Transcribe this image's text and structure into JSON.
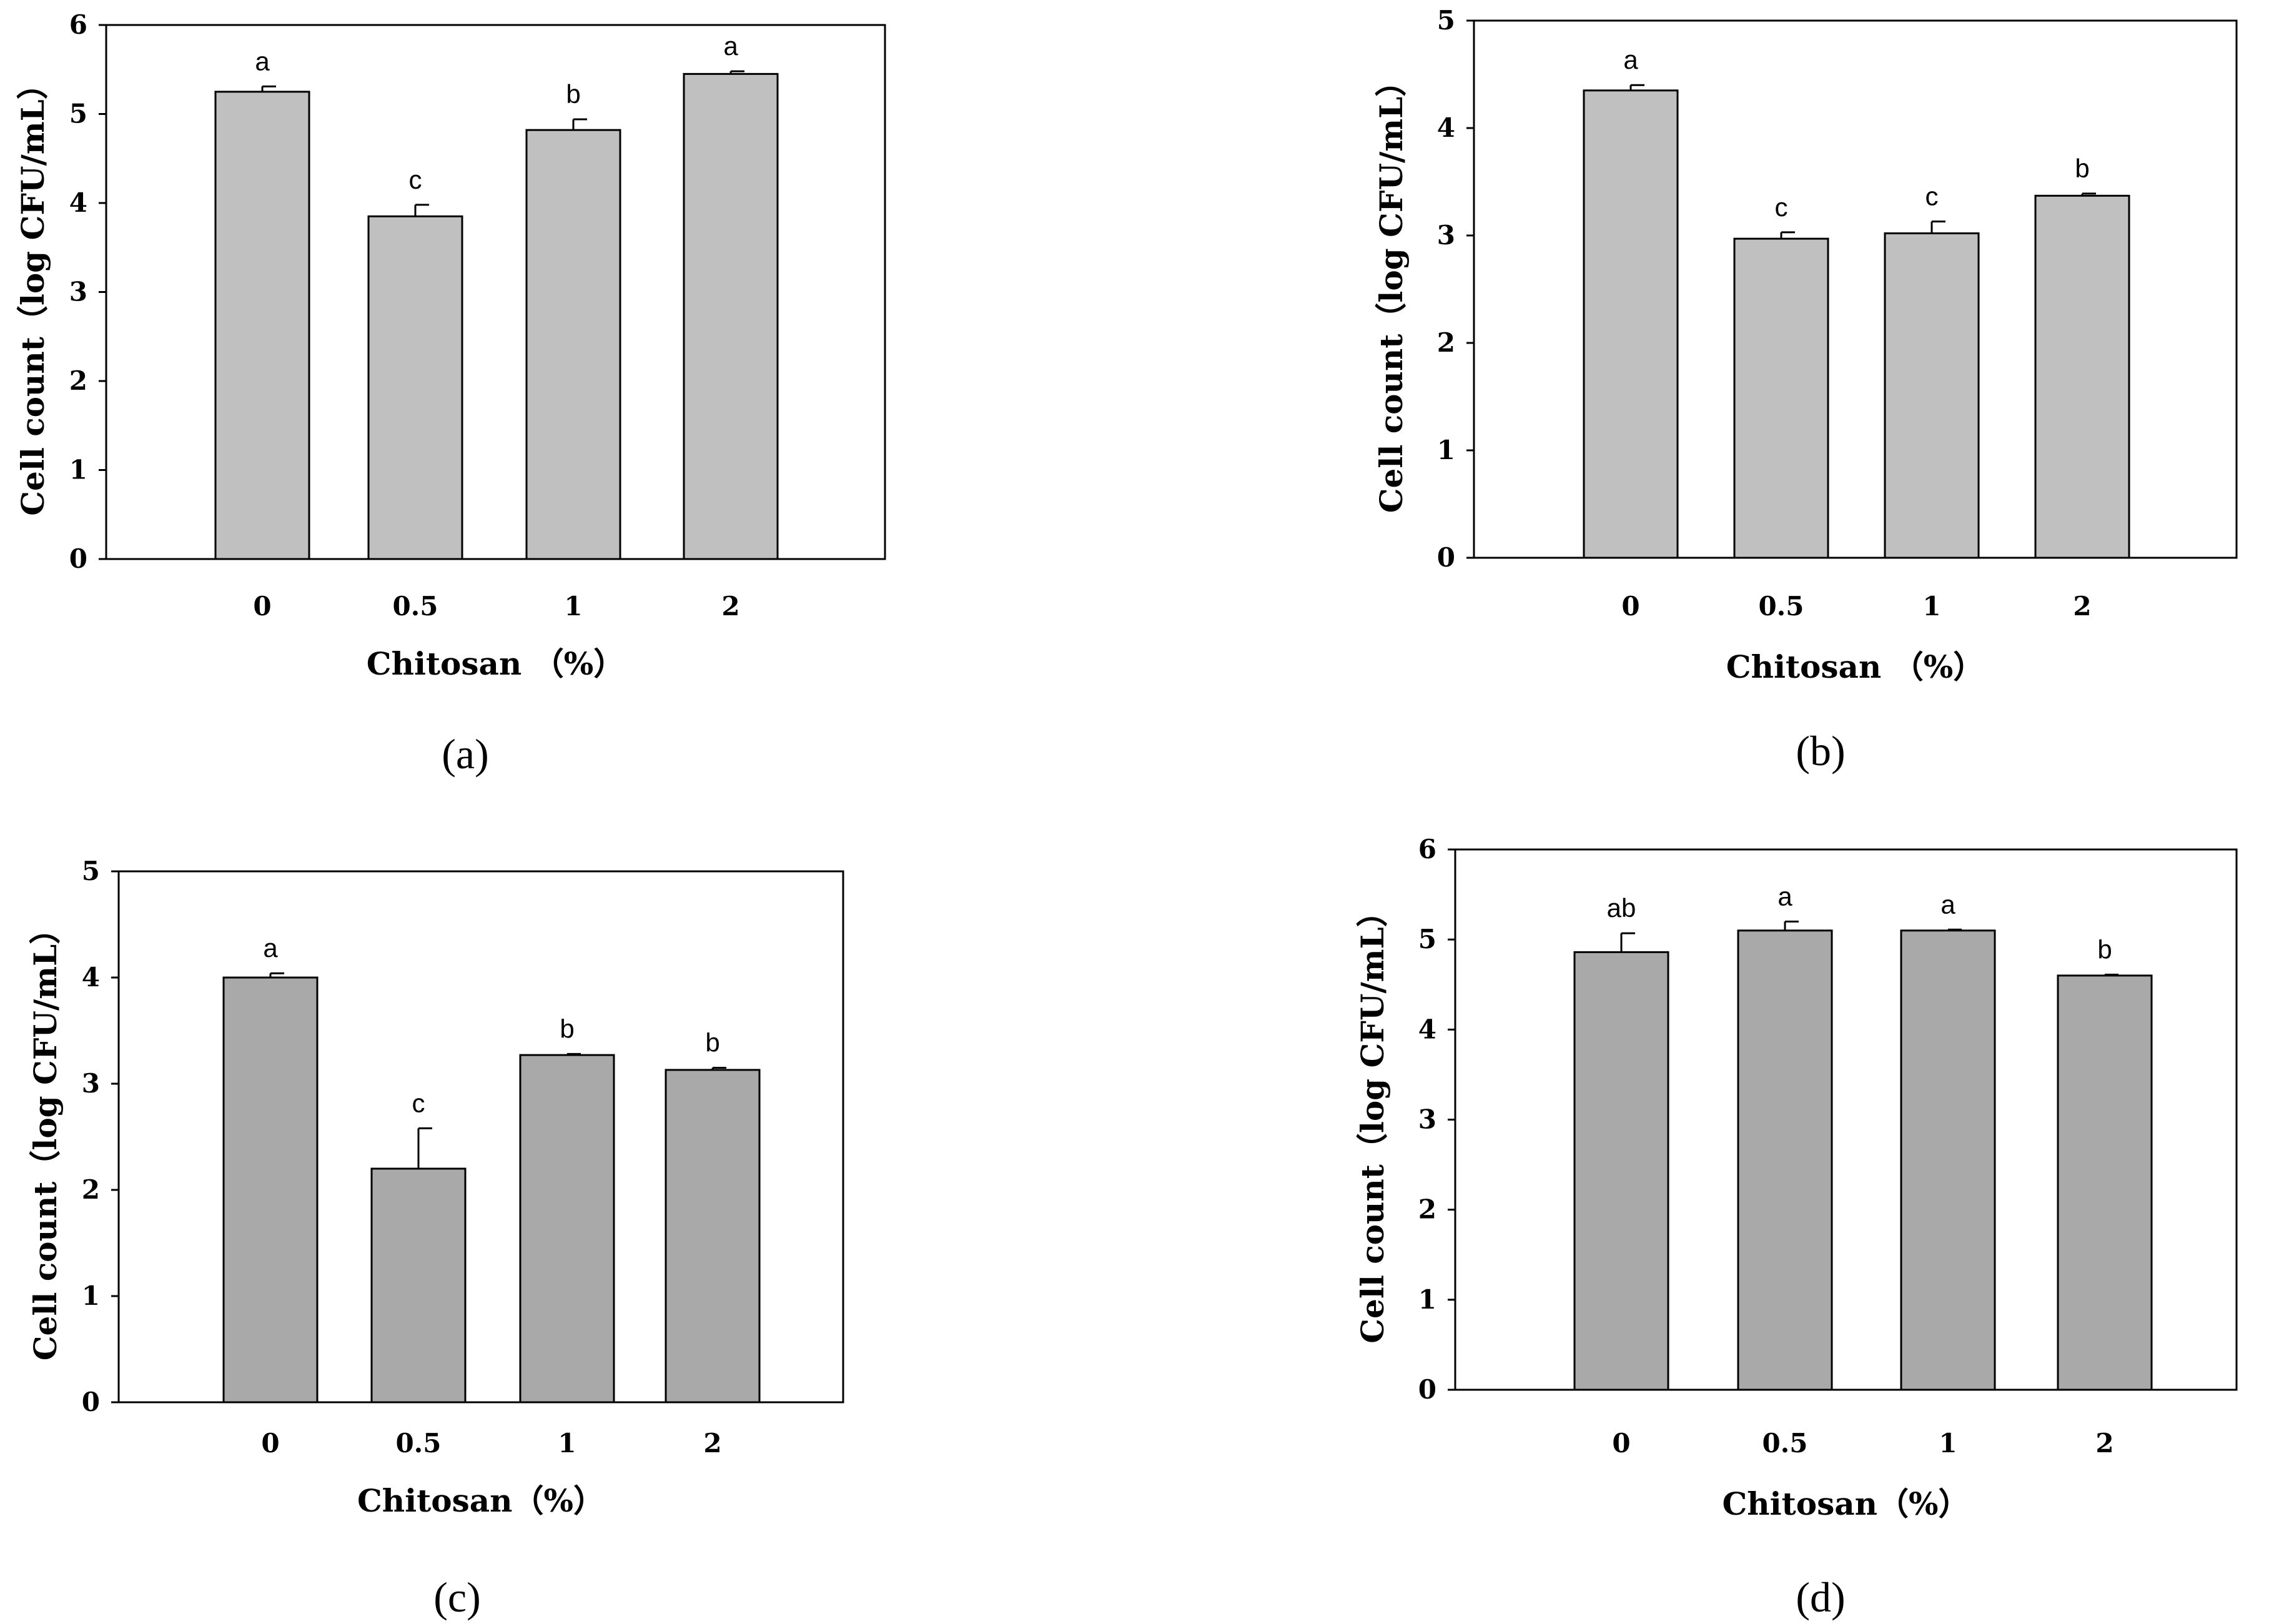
{
  "chart_data": [
    {
      "panel": "(a)",
      "type": "bar",
      "categories": [
        "0",
        "0.5",
        "1",
        "2"
      ],
      "values": [
        5.25,
        3.85,
        4.82,
        5.45
      ],
      "errors": [
        0.06,
        0.13,
        0.12,
        0.03
      ],
      "significance": [
        "a",
        "c",
        "b",
        "a"
      ],
      "xlabel": "Chitosan （%）",
      "ylabel": "Cell count（log CFU/mL）",
      "ylim": [
        0,
        6
      ],
      "yticks": [
        "0",
        "1",
        "2",
        "3",
        "4",
        "5",
        "6"
      ],
      "bar_color": "#c0c0c0"
    },
    {
      "panel": "(b)",
      "type": "bar",
      "categories": [
        "0",
        "0.5",
        "1",
        "2"
      ],
      "values": [
        4.35,
        2.97,
        3.02,
        3.37
      ],
      "errors": [
        0.05,
        0.06,
        0.11,
        0.02
      ],
      "significance": [
        "a",
        "c",
        "c",
        "b"
      ],
      "xlabel": "Chitosan （%）",
      "ylabel": "Cell count（log CFU/mL）",
      "ylim": [
        0,
        5
      ],
      "yticks": [
        "0",
        "1",
        "2",
        "3",
        "4",
        "5"
      ],
      "bar_color": "#c0c0c0"
    },
    {
      "panel": "(c)",
      "type": "bar",
      "categories": [
        "0",
        "0.5",
        "1",
        "2"
      ],
      "values": [
        4.0,
        2.2,
        3.27,
        3.13
      ],
      "errors": [
        0.04,
        0.38,
        0.01,
        0.02
      ],
      "significance": [
        "a",
        "c",
        "b",
        "b"
      ],
      "xlabel": "Chitosan（%）",
      "ylabel": "Cell count（log CFU/mL）",
      "ylim": [
        0,
        5
      ],
      "yticks": [
        "0",
        "1",
        "2",
        "3",
        "4",
        "5"
      ],
      "bar_color": "#a9a9a9"
    },
    {
      "panel": "(d)",
      "type": "bar",
      "categories": [
        "0",
        "0.5",
        "1",
        "2"
      ],
      "values": [
        4.86,
        5.1,
        5.1,
        4.6
      ],
      "errors": [
        0.21,
        0.1,
        0.01,
        0.01
      ],
      "significance": [
        "ab",
        "a",
        "a",
        "b"
      ],
      "xlabel": "Chitosan（%）",
      "ylabel": "Cell count（log CFU/mL）",
      "ylim": [
        0,
        6
      ],
      "yticks": [
        "0",
        "1",
        "2",
        "3",
        "4",
        "5",
        "6"
      ],
      "bar_color": "#a9a9a9"
    }
  ]
}
